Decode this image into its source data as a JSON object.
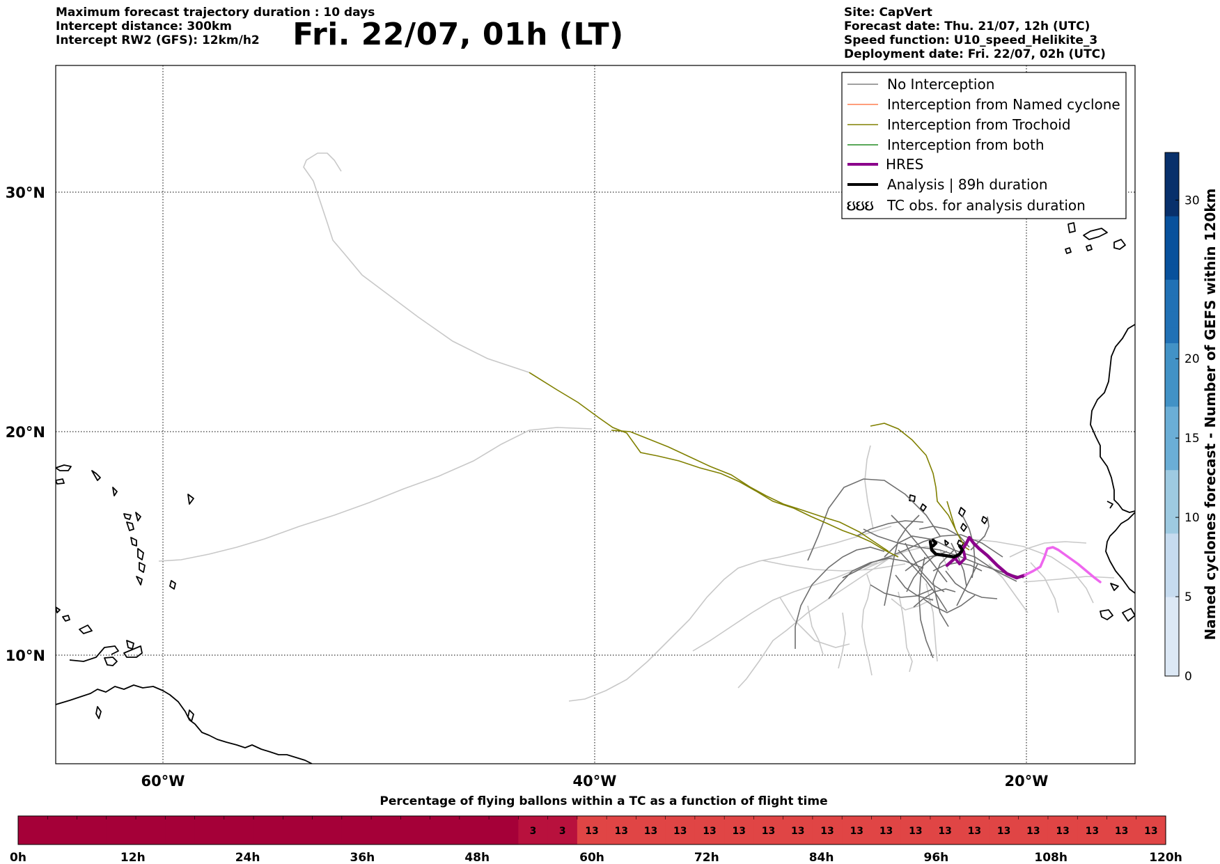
{
  "header": {
    "left_lines": [
      "Maximum forecast trajectory duration : 10 days",
      "Intercept distance: 300km",
      "Intercept RW2 (GFS):  12km/h2"
    ],
    "title": "Fri. 22/07, 01h (LT)",
    "right_lines": [
      "Site: CapVert",
      "Forecast date: Thu. 21/07, 12h (UTC)",
      "Speed function: U10_speed_Helikite_3",
      "Deployment date: Fri. 22/07, 02h (UTC)"
    ]
  },
  "map": {
    "lat_labels": [
      "30°N",
      "20°N",
      "10°N"
    ],
    "lon_labels": [
      "60°W",
      "40°W",
      "20°W"
    ],
    "lat_range": [
      5.5,
      34.7
    ],
    "lon_range": [
      -65,
      -15
    ]
  },
  "legend": {
    "items": [
      {
        "label": "No Interception",
        "color": "#808080",
        "style": "thin"
      },
      {
        "label": "Interception from Named cyclone",
        "color": "#ff7f50",
        "style": "thin"
      },
      {
        "label": "Interception from Trochoid",
        "color": "#808000",
        "style": "thin"
      },
      {
        "label": "Interception from both",
        "color": "#228b22",
        "style": "thin"
      },
      {
        "label": "HRES",
        "color": "#8b008b",
        "style": "thick"
      },
      {
        "label": "Analysis | 89h duration",
        "color": "#000000",
        "style": "thick"
      },
      {
        "label": "TC obs. for analysis duration",
        "color": "#000000",
        "style": "symbol",
        "symbol": "ઇઇઇ"
      }
    ]
  },
  "colorbar": {
    "label": "Named cyclones forecast - Number of GEFS within 120km",
    "ticks": [
      "0",
      "5",
      "10",
      "15",
      "20",
      "30"
    ],
    "colors": [
      "#dce8f5",
      "#c6dbef",
      "#9ecae1",
      "#6baed6",
      "#4292c6",
      "#2171b5",
      "#08519c",
      "#08306b"
    ]
  },
  "timeline": {
    "title": "Percentage of flying ballons within a TC as a function of flight time",
    "time_labels": [
      "0h",
      "12h",
      "24h",
      "36h",
      "48h",
      "60h",
      "72h",
      "84h",
      "96h",
      "108h",
      "120h"
    ],
    "cells": [
      "",
      "",
      "",
      "",
      "",
      "",
      "",
      "",
      "",
      "",
      "",
      "",
      "",
      "",
      "",
      "",
      "",
      "3",
      "3",
      "13",
      "13",
      "13",
      "13",
      "13",
      "13",
      "13",
      "13",
      "13",
      "13",
      "13",
      "13",
      "13",
      "13",
      "13",
      "13",
      "13",
      "13",
      "13",
      "13"
    ],
    "colors": {
      "none": "#a50038",
      "low": "#b8113d",
      "high": "#e04545"
    }
  },
  "chart_data": {
    "type": "map-trajectories",
    "hres_path": [
      [
        -23.0,
        13.9
      ],
      [
        -22.6,
        14.6
      ],
      [
        -22.3,
        15.0
      ],
      [
        -21.5,
        14.6
      ],
      [
        -21.0,
        13.9
      ],
      [
        -20.2,
        13.6
      ],
      [
        -19.3,
        14.1
      ],
      [
        -19.0,
        14.9
      ],
      [
        -18.2,
        14.2
      ],
      [
        -17.0,
        13.2
      ]
    ],
    "analysis_path": [
      [
        -23.5,
        15.0
      ],
      [
        -23.3,
        14.5
      ],
      [
        -22.8,
        14.4
      ],
      [
        -22.6,
        14.3
      ]
    ],
    "trochoid_path": [
      [
        -43.0,
        22.5
      ],
      [
        -40.0,
        20.9
      ],
      [
        -38.0,
        19.9
      ],
      [
        -35.0,
        18.9
      ],
      [
        -32.5,
        17.6
      ],
      [
        -30.0,
        16.7
      ],
      [
        -28.0,
        16.1
      ],
      [
        -25.5,
        15.2
      ],
      [
        -24.0,
        14.6
      ],
      [
        -23.2,
        14.5
      ]
    ]
  }
}
